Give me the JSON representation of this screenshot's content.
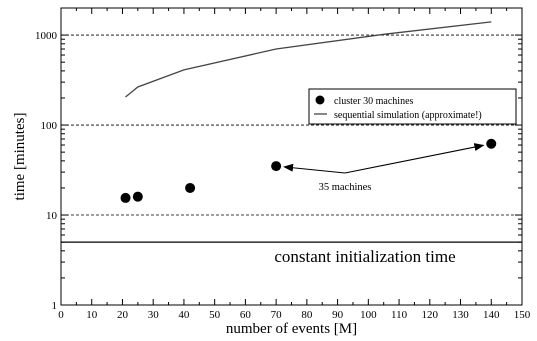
{
  "chart_data": {
    "type": "scatter",
    "title": "",
    "xlabel": "number of events [M]",
    "ylabel": "time [minutes]",
    "xlim": [
      0,
      150
    ],
    "ylim": [
      1,
      2000
    ],
    "yscale": "log",
    "xticks": [
      0,
      10,
      20,
      30,
      40,
      50,
      60,
      70,
      80,
      90,
      100,
      110,
      120,
      130,
      140,
      150
    ],
    "yticks": [
      1,
      10,
      100,
      1000
    ],
    "ytick_labels": [
      "1",
      "10",
      "100",
      "1000"
    ],
    "grid": "horizontal dashed at 10, 100, 1000",
    "legend_position": "top-right",
    "series": [
      {
        "name": "cluster 30 machines",
        "style": "points",
        "color": "#000000",
        "x": [
          21,
          25,
          42,
          70,
          140
        ],
        "y": [
          15.5,
          16,
          20,
          35,
          62
        ]
      },
      {
        "name": "sequential simulation (approximate!)",
        "style": "line",
        "color": "#444444",
        "x": [
          21,
          25,
          40,
          70,
          105,
          140
        ],
        "y": [
          205,
          265,
          410,
          700,
          1020,
          1400
        ]
      }
    ],
    "reference_lines": [
      {
        "y": 5,
        "label": "constant initialization time"
      }
    ],
    "annotations": [
      {
        "text": "35 machines",
        "arrows_to": [
          [
            70,
            35
          ],
          [
            140,
            62
          ]
        ]
      }
    ]
  }
}
